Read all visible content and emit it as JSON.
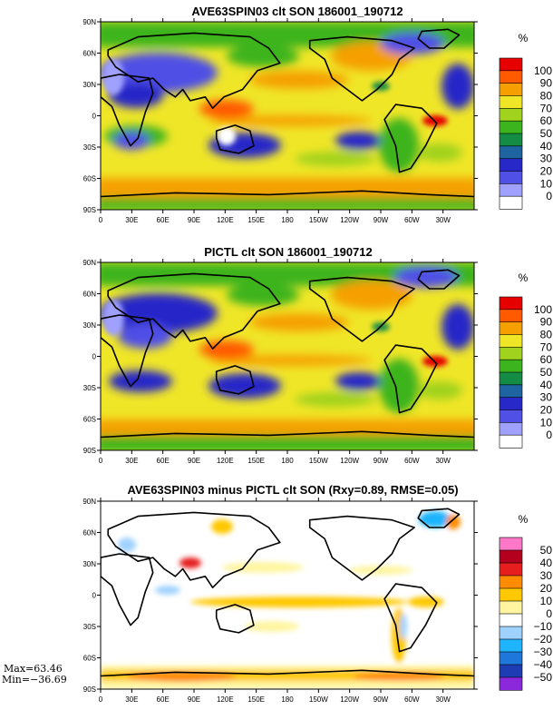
{
  "chart_data": [
    {
      "type": "heatmap",
      "title": "AVE63SPIN03 clt SON 186001_190712",
      "x_ticks": [
        "0",
        "30E",
        "60E",
        "90E",
        "120E",
        "150E",
        "180",
        "150W",
        "120W",
        "90W",
        "60W",
        "30W"
      ],
      "y_ticks": [
        "90N",
        "60N",
        "30N",
        "0",
        "30S",
        "60S",
        "90S"
      ],
      "units": "%",
      "levels": [
        "0",
        "10",
        "20",
        "30",
        "40",
        "50",
        "60",
        "70",
        "80",
        "90",
        "100"
      ],
      "colors": [
        "#ffffff",
        "#a0a0ff",
        "#5050e6",
        "#2828c8",
        "#1e64a0",
        "#148c46",
        "#3cb41e",
        "#a0d21e",
        "#f0e628",
        "#f5a000",
        "#ff5a00",
        "#e60000"
      ],
      "grid": false
    },
    {
      "type": "heatmap",
      "title": "PICTL clt SON 186001_190712",
      "x_ticks": [
        "0",
        "30E",
        "60E",
        "90E",
        "120E",
        "150E",
        "180",
        "150W",
        "120W",
        "90W",
        "60W",
        "30W"
      ],
      "y_ticks": [
        "90N",
        "60N",
        "30N",
        "0",
        "30S",
        "60S",
        "90S"
      ],
      "units": "%",
      "levels": [
        "0",
        "10",
        "20",
        "30",
        "40",
        "50",
        "60",
        "70",
        "80",
        "90",
        "100"
      ],
      "colors": [
        "#ffffff",
        "#a0a0ff",
        "#5050e6",
        "#2828c8",
        "#1e64a0",
        "#148c46",
        "#3cb41e",
        "#a0d21e",
        "#f0e628",
        "#f5a000",
        "#ff5a00",
        "#e60000"
      ],
      "grid": false
    },
    {
      "type": "heatmap",
      "title": "AVE63SPIN03 minus PICTL clt SON (Rxy=0.89, RMSE=0.05)",
      "x_ticks": [
        "0",
        "30E",
        "60E",
        "90E",
        "120E",
        "150E",
        "180",
        "150W",
        "120W",
        "90W",
        "60W",
        "30W"
      ],
      "y_ticks": [
        "90N",
        "60N",
        "30N",
        "0",
        "30S",
        "60S",
        "90S"
      ],
      "units": "%",
      "levels": [
        "50",
        "40",
        "30",
        "20",
        "10",
        "0",
        "−10",
        "−20",
        "−30",
        "−40",
        "−50"
      ],
      "colors": [
        "#ff78c8",
        "#b4001e",
        "#e61e1e",
        "#ff8c00",
        "#ffc800",
        "#fff5a0",
        "#ffffff",
        "#a0d2ff",
        "#1eb4ff",
        "#1e78dc",
        "#1e3cb4",
        "#8c28dc"
      ],
      "stats": {
        "max": "Max=63.46",
        "min": "Min=−36.69"
      },
      "grid": false
    }
  ]
}
